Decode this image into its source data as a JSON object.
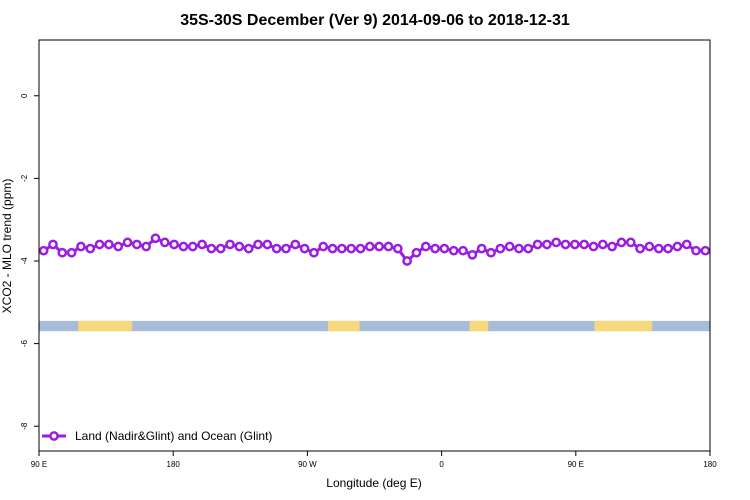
{
  "chart_data": {
    "type": "line",
    "title": "35S-30S December (Ver 9)   2014-09-06 to 2018-12-31",
    "xlabel": "Longitude (deg E)",
    "ylabel": "XCO2 - MLO trend (ppm)",
    "xlim": [
      90,
      450
    ],
    "ylim": [
      -8.6,
      1.35
    ],
    "x_ticks": [
      {
        "value": 90,
        "label": "90 E"
      },
      {
        "value": 162,
        "label": "180"
      },
      {
        "value": 234,
        "label": "90 W"
      },
      {
        "value": 306,
        "label": "0"
      },
      {
        "value": 378,
        "label": "90 E"
      },
      {
        "value": 450,
        "label": "180"
      }
    ],
    "y_ticks": [
      {
        "value": 0,
        "label": "0"
      },
      {
        "value": -2,
        "label": "-2"
      },
      {
        "value": -4,
        "label": "-4"
      },
      {
        "value": -6,
        "label": "-6"
      },
      {
        "value": -8,
        "label": "-8"
      }
    ],
    "grid": false,
    "legend": {
      "position": "bottom-left"
    },
    "series": [
      {
        "name": "Land (Nadir&Glint) and Ocean (Glint)",
        "color": "#9a1de0",
        "marker": "circle-open",
        "x": [
          92.5,
          97.5,
          102.5,
          107.5,
          112.5,
          117.5,
          122.5,
          127.5,
          132.5,
          137.5,
          142.5,
          147.5,
          152.5,
          157.5,
          162.5,
          167.5,
          172.5,
          177.5,
          182.5,
          187.5,
          192.5,
          197.5,
          202.5,
          207.5,
          212.5,
          217.5,
          222.5,
          227.5,
          232.5,
          237.5,
          242.5,
          247.5,
          252.5,
          257.5,
          262.5,
          267.5,
          272.5,
          277.5,
          282.5,
          287.5,
          292.5,
          297.5,
          302.5,
          307.5,
          312.5,
          317.5,
          322.5,
          327.5,
          332.5,
          337.5,
          342.5,
          347.5,
          352.5,
          357.5,
          362.5,
          367.5,
          372.5,
          377.5,
          382.5,
          387.5,
          392.5,
          397.5,
          402.5,
          407.5,
          412.5,
          417.5,
          422.5,
          427.5,
          432.5,
          437.5,
          442.5,
          447.5
        ],
        "y": [
          -3.75,
          -3.6,
          -3.8,
          -3.8,
          -3.65,
          -3.7,
          -3.6,
          -3.6,
          -3.65,
          -3.55,
          -3.6,
          -3.65,
          -3.45,
          -3.55,
          -3.6,
          -3.65,
          -3.65,
          -3.6,
          -3.7,
          -3.7,
          -3.6,
          -3.65,
          -3.7,
          -3.6,
          -3.6,
          -3.7,
          -3.7,
          -3.6,
          -3.7,
          -3.8,
          -3.65,
          -3.7,
          -3.7,
          -3.7,
          -3.7,
          -3.65,
          -3.65,
          -3.65,
          -3.7,
          -4.0,
          -3.8,
          -3.65,
          -3.7,
          -3.7,
          -3.75,
          -3.75,
          -3.85,
          -3.7,
          -3.8,
          -3.7,
          -3.65,
          -3.7,
          -3.7,
          -3.6,
          -3.6,
          -3.55,
          -3.6,
          -3.6,
          -3.6,
          -3.65,
          -3.6,
          -3.65,
          -3.55,
          -3.55,
          -3.7,
          -3.65,
          -3.7,
          -3.7,
          -3.65,
          -3.6,
          -3.75,
          -3.75
        ]
      }
    ],
    "land_ocean_strip": {
      "y_range": [
        -5.7,
        -5.45
      ],
      "ocean_color": "#a7bcd9",
      "land_color": "#f7d87a",
      "land_segments": [
        [
          111,
          140
        ],
        [
          245,
          262
        ],
        [
          321,
          331
        ],
        [
          388,
          419
        ]
      ]
    }
  }
}
